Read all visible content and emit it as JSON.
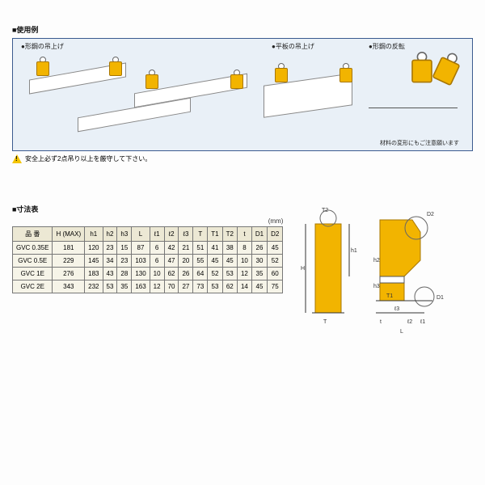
{
  "colors": {
    "panel_border": "#3b5b8f",
    "panel_bg": "#e9f0f7",
    "clamp_yellow": "#f2b400",
    "clamp_outline": "#a87600",
    "table_header_bg": "#ece8d4",
    "table_cell_bg": "#f6f4e8",
    "table_border": "#777777"
  },
  "usage": {
    "section_label": "■使用例",
    "sub_labels": {
      "a": "●形鋼の吊上げ",
      "b": "●平板の吊上げ",
      "c": "●形鋼の反転"
    },
    "note_small": "材料の変形にもご注意願います"
  },
  "warning_text": "安全上必ず2点吊り以上を厳守して下さい。",
  "dims": {
    "section_label": "■寸法表",
    "unit_label": "(mm)",
    "columns": [
      "品 番",
      "H (MAX)",
      "h1",
      "h2",
      "h3",
      "L",
      "ℓ1",
      "ℓ2",
      "ℓ3",
      "T",
      "T1",
      "T2",
      "t",
      "D1",
      "D2"
    ],
    "rows": [
      [
        "GVC 0.35E",
        "181",
        "120",
        "23",
        "15",
        "87",
        "6",
        "42",
        "21",
        "51",
        "41",
        "38",
        "8",
        "26",
        "45"
      ],
      [
        "GVC 0.5E",
        "229",
        "145",
        "34",
        "23",
        "103",
        "6",
        "47",
        "20",
        "55",
        "45",
        "45",
        "10",
        "30",
        "52"
      ],
      [
        "GVC 1E",
        "276",
        "183",
        "43",
        "28",
        "130",
        "10",
        "62",
        "26",
        "64",
        "52",
        "53",
        "12",
        "35",
        "60"
      ],
      [
        "GVC 2E",
        "343",
        "232",
        "53",
        "35",
        "163",
        "12",
        "70",
        "27",
        "73",
        "53",
        "62",
        "14",
        "45",
        "75"
      ]
    ],
    "font_size_pt": 8
  },
  "drawing": {
    "dimension_labels": [
      "T2",
      "D2",
      "H",
      "h1",
      "h2",
      "h3",
      "T1",
      "ℓ3",
      "ℓ2",
      "t",
      "T",
      "ℓ1",
      "L",
      "D1"
    ]
  }
}
